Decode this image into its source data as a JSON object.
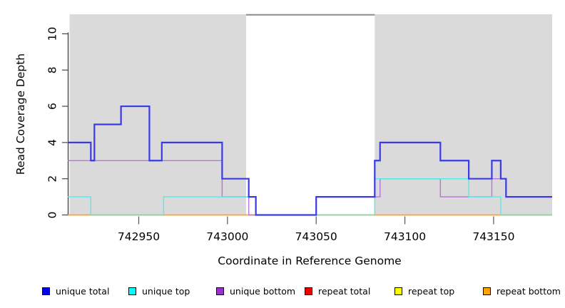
{
  "chart_data": {
    "type": "line",
    "subtype": "step-coverage-plot",
    "title": "",
    "xlabel": "Coordinate in Reference Genome",
    "ylabel": "Read Coverage Depth",
    "xlim": [
      742910,
      743183
    ],
    "ylim": [
      0,
      11.08
    ],
    "x_ticks": [
      742950,
      743000,
      743050,
      743100,
      743150
    ],
    "y_ticks": [
      0,
      2,
      4,
      6,
      8,
      10
    ],
    "grid": false,
    "background_color": "#ffffff",
    "shaded_regions": [
      {
        "name": "repeat-region-left",
        "x0": 742911,
        "x1": 743010.5,
        "color": "#dadada"
      },
      {
        "name": "repeat-region-right",
        "x0": 743083,
        "x1": 743183,
        "color": "#dadada"
      }
    ],
    "clip_line": {
      "x0": 743010.5,
      "x1": 743083,
      "value": 11.05,
      "color": "#8c8c8c"
    },
    "zero_overlap_blend_color": "#8fd69b",
    "series": [
      {
        "name": "repeat total",
        "line_color": "#ee2222",
        "width": 1.2,
        "steps": [
          [
            742910,
            0
          ]
        ]
      },
      {
        "name": "repeat top",
        "line_color": "#ffff55",
        "width": 1.2,
        "steps": [
          [
            742910,
            0
          ]
        ]
      },
      {
        "name": "repeat bottom",
        "line_color": "#ffa51e",
        "width": 1.6,
        "steps": [
          [
            742910,
            0
          ]
        ]
      },
      {
        "name": "unique bottom",
        "line_color": "#b873dc",
        "width": 1.4,
        "steps": [
          [
            742910,
            3
          ],
          [
            742997,
            1
          ],
          [
            743012,
            0
          ],
          [
            743050,
            1
          ],
          [
            743086,
            2
          ],
          [
            743120,
            1
          ],
          [
            743149,
            2
          ],
          [
            743157,
            1
          ]
        ]
      },
      {
        "name": "unique top",
        "line_color": "#55eaea",
        "width": 1.4,
        "blend_zero": true,
        "steps": [
          [
            742910,
            1
          ],
          [
            742923,
            0
          ],
          [
            742964,
            1
          ],
          [
            743016,
            0
          ],
          [
            743083,
            2
          ],
          [
            743136,
            1
          ],
          [
            743154,
            0
          ]
        ]
      },
      {
        "name": "unique total",
        "line_color": "#3a3ae6",
        "width": 2.2,
        "steps": [
          [
            742910,
            4
          ],
          [
            742923,
            3
          ],
          [
            742925,
            5
          ],
          [
            742940,
            6
          ],
          [
            742956,
            3
          ],
          [
            742963,
            4
          ],
          [
            742997,
            2
          ],
          [
            743012,
            1
          ],
          [
            743016,
            0
          ],
          [
            743050,
            1
          ],
          [
            743083,
            3
          ],
          [
            743086,
            4
          ],
          [
            743120,
            3
          ],
          [
            743136,
            2
          ],
          [
            743149,
            3
          ],
          [
            743154,
            2
          ],
          [
            743157,
            1
          ]
        ]
      }
    ],
    "legend": {
      "position": "bottom",
      "items": [
        {
          "label": "unique total",
          "color": "#0000ee"
        },
        {
          "label": "unique top",
          "color": "#00ffff"
        },
        {
          "label": "unique bottom",
          "color": "#9a32cd"
        },
        {
          "label": "repeat total",
          "color": "#ee0000"
        },
        {
          "label": "repeat top",
          "color": "#ffff00"
        },
        {
          "label": "repeat bottom",
          "color": "#ffa500"
        }
      ]
    }
  }
}
